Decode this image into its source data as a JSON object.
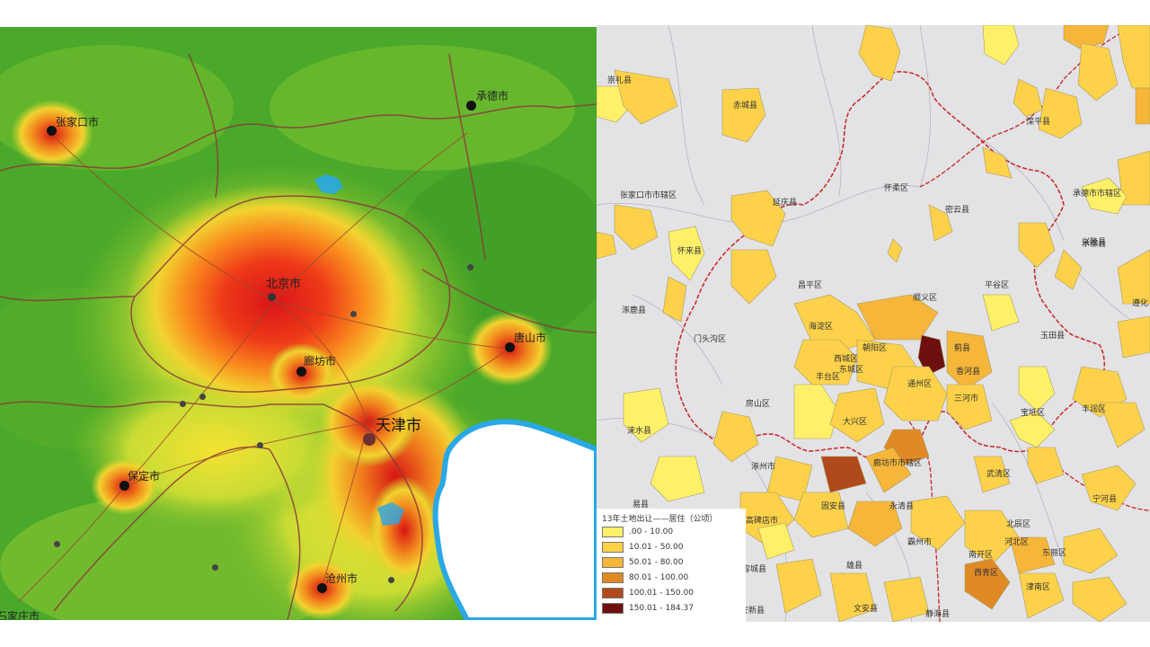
{
  "left_map": {
    "cities": [
      {
        "id": "zhangjiakou",
        "label": "张家口市"
      },
      {
        "id": "chengde",
        "label": "承德市"
      },
      {
        "id": "beijing",
        "label": "北京市"
      },
      {
        "id": "langfang",
        "label": "廊坊市"
      },
      {
        "id": "tangshan",
        "label": "唐山市"
      },
      {
        "id": "tianjin",
        "label": "天津市"
      },
      {
        "id": "baoding",
        "label": "保定市"
      },
      {
        "id": "cangzhou",
        "label": "沧州市"
      },
      {
        "id": "shijiazhuang",
        "label": "石家庄市"
      }
    ]
  },
  "right_map": {
    "labels": [
      {
        "id": "chicheng",
        "text": "赤城县"
      },
      {
        "id": "chongli",
        "text": "崇礼县"
      },
      {
        "id": "luanping",
        "text": "滦平县"
      },
      {
        "id": "chengdeshi",
        "text": "承德市市辖区"
      },
      {
        "id": "chengdexian",
        "text": "承德县"
      },
      {
        "id": "zjk-shixia",
        "text": "张家口市市辖区"
      },
      {
        "id": "huairou",
        "text": "怀柔区"
      },
      {
        "id": "miyun",
        "text": "密云县"
      },
      {
        "id": "yanqing",
        "text": "延庆县"
      },
      {
        "id": "huailai",
        "text": "怀来县"
      },
      {
        "id": "xinglong",
        "text": "兴隆县"
      },
      {
        "id": "pinggu",
        "text": "平谷区"
      },
      {
        "id": "changping",
        "text": "昌平区"
      },
      {
        "id": "shunyi",
        "text": "顺义区"
      },
      {
        "id": "zhuolu",
        "text": "涿鹿县"
      },
      {
        "id": "mentougou",
        "text": "门头沟区"
      },
      {
        "id": "haidian",
        "text": "海淀区"
      },
      {
        "id": "chaoyang",
        "text": "朝阳区"
      },
      {
        "id": "xicheng",
        "text": "西城区"
      },
      {
        "id": "dongcheng",
        "text": "东城区"
      },
      {
        "id": "fengtai",
        "text": "丰台区"
      },
      {
        "id": "tongzhou",
        "text": "通州区"
      },
      {
        "id": "sanhe",
        "text": "三河市"
      },
      {
        "id": "jizhou",
        "text": "蓟县"
      },
      {
        "id": "yutian",
        "text": "玉田县"
      },
      {
        "id": "xianghe",
        "text": "香河县"
      },
      {
        "id": "daxing",
        "text": "大兴区"
      },
      {
        "id": "fangshan",
        "text": "房山区"
      },
      {
        "id": "laishui",
        "text": "涞水县"
      },
      {
        "id": "zhuozhou",
        "text": "涿州市"
      },
      {
        "id": "lf-shixia",
        "text": "廊坊市市辖区"
      },
      {
        "id": "baodi",
        "text": "宝坻区"
      },
      {
        "id": "fengrun",
        "text": "丰润区"
      },
      {
        "id": "wuqing",
        "text": "武清区"
      },
      {
        "id": "ninghe",
        "text": "宁河县"
      },
      {
        "id": "gu-an",
        "text": "固安县"
      },
      {
        "id": "yongqing",
        "text": "永清县"
      },
      {
        "id": "gaobeidian",
        "text": "高碑店市"
      },
      {
        "id": "yixian",
        "text": "易县"
      },
      {
        "id": "bazhou",
        "text": "霸州市"
      },
      {
        "id": "beichen",
        "text": "北辰区"
      },
      {
        "id": "tj-core",
        "text": "河北区"
      },
      {
        "id": "nankai",
        "text": "南开区"
      },
      {
        "id": "dongli",
        "text": "东丽区"
      },
      {
        "id": "xiqing",
        "text": "西青区"
      },
      {
        "id": "jinnan",
        "text": "津南区"
      },
      {
        "id": "rongcheng",
        "text": "容城县"
      },
      {
        "id": "xiongxian",
        "text": "雄县"
      },
      {
        "id": "anxin",
        "text": "安新县"
      },
      {
        "id": "wenan",
        "text": "文安县"
      },
      {
        "id": "jinghai",
        "text": "静海县"
      },
      {
        "id": "zunhua",
        "text": "遵化"
      }
    ]
  },
  "legend": {
    "title": "13年土地出让——居住（公顷）",
    "items": [
      {
        "range": ".00 - 10.00",
        "color": "#fff06a"
      },
      {
        "range": "10.01 - 50.00",
        "color": "#fdd24a"
      },
      {
        "range": "50.01 - 80.00",
        "color": "#f6b63a"
      },
      {
        "range": "80.01 - 100.00",
        "color": "#e08a26"
      },
      {
        "range": "100.01 - 150.00",
        "color": "#b04a1c"
      },
      {
        "range": "150.01 - 184.37",
        "color": "#6e1010"
      }
    ]
  },
  "colors": {
    "heat_low": "#4aa82a",
    "heat_mid": "#f4e232",
    "heat_high": "#e82a18",
    "sea": "#ffffff",
    "coast": "#2aa8e6",
    "admin_border": "#8a3a3a",
    "right_bg": "#e3e3e6",
    "right_border": "#c8302c"
  }
}
